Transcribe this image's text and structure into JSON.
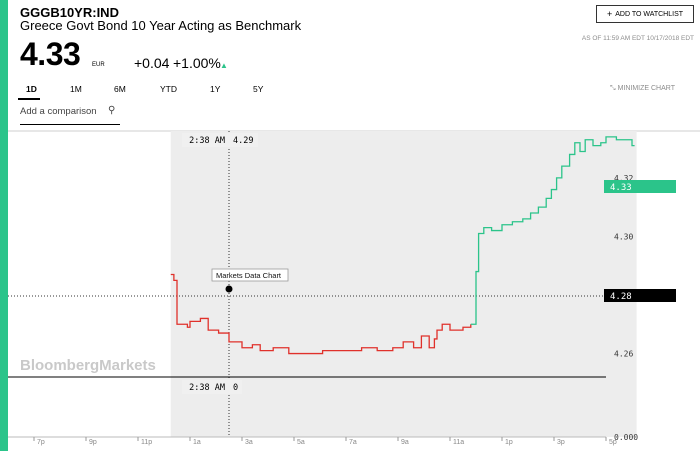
{
  "header": {
    "ticker": "GGGB10YR:IND",
    "name": "Greece Govt Bond 10 Year Acting as Benchmark",
    "watchlist_label": "ADD TO WATCHLIST",
    "as_of": "AS OF 11:59 AM EDT 10/17/2018 EDT",
    "price": "4.33",
    "currency": "EUR",
    "change": "+0.04",
    "change_pct": "+1.00%",
    "accent_color": "#2bc48a"
  },
  "tabs": [
    {
      "label": "1D",
      "active": true
    },
    {
      "label": "1M",
      "active": false
    },
    {
      "label": "6M",
      "active": false
    },
    {
      "label": "YTD",
      "active": false
    },
    {
      "label": "1Y",
      "active": false
    },
    {
      "label": "5Y",
      "active": false
    }
  ],
  "minimize_label": "MINIMIZE CHART",
  "compare_placeholder": "Add a comparison",
  "icons": [
    "plus-icon",
    "up-arrow-icon",
    "minimize-icon",
    "search-icon"
  ],
  "chart_data": {
    "type": "line",
    "watermark": "BloombergMarkets",
    "tooltip_label": "Markets Data Chart",
    "crosshair_time": "2:38 AM",
    "crosshair_value": "4.29",
    "crosshair_volume": "0",
    "last_value_tag": "4.33",
    "cursor_value_tag": "4.28",
    "price_ticks": [
      "4.32",
      "4.30",
      "4.26"
    ],
    "volume_tick": "0.000",
    "time_ticks": [
      "7p",
      "9p",
      "11p",
      "1a",
      "3a",
      "5a",
      "7a",
      "9a",
      "11a",
      "1p",
      "3p",
      "5p"
    ],
    "ylim": [
      4.252,
      4.336
    ],
    "colors": {
      "down": "#e0312b",
      "up": "#2bc48a"
    },
    "series": [
      {
        "color": "down",
        "points": [
          [
            2.63,
            4.287
          ],
          [
            2.67,
            4.287
          ],
          [
            2.69,
            4.285
          ],
          [
            2.75,
            4.27
          ],
          [
            2.95,
            4.269
          ],
          [
            3.0,
            4.271
          ],
          [
            3.2,
            4.272
          ],
          [
            3.35,
            4.268
          ],
          [
            3.55,
            4.267
          ],
          [
            3.75,
            4.264
          ],
          [
            4.0,
            4.262
          ],
          [
            4.2,
            4.263
          ],
          [
            4.35,
            4.261
          ],
          [
            4.6,
            4.262
          ],
          [
            4.9,
            4.26
          ],
          [
            5.2,
            4.26
          ],
          [
            5.55,
            4.261
          ],
          [
            5.9,
            4.261
          ],
          [
            6.3,
            4.262
          ],
          [
            6.6,
            4.261
          ],
          [
            6.9,
            4.262
          ],
          [
            7.1,
            4.264
          ],
          [
            7.3,
            4.262
          ],
          [
            7.45,
            4.266
          ],
          [
            7.6,
            4.262
          ],
          [
            7.7,
            4.265
          ],
          [
            7.75,
            4.268
          ],
          [
            7.85,
            4.27
          ],
          [
            8.0,
            4.268
          ],
          [
            8.25,
            4.269
          ],
          [
            8.4,
            4.27
          ]
        ]
      },
      {
        "color": "up",
        "points": [
          [
            8.4,
            4.27
          ],
          [
            8.5,
            4.288
          ],
          [
            8.55,
            4.301
          ],
          [
            8.65,
            4.303
          ],
          [
            8.8,
            4.302
          ],
          [
            9.0,
            4.304
          ],
          [
            9.2,
            4.305
          ],
          [
            9.4,
            4.306
          ],
          [
            9.55,
            4.308
          ],
          [
            9.7,
            4.31
          ],
          [
            9.85,
            4.313
          ],
          [
            9.95,
            4.316
          ],
          [
            10.05,
            4.32
          ],
          [
            10.15,
            4.324
          ],
          [
            10.3,
            4.328
          ],
          [
            10.4,
            4.332
          ],
          [
            10.5,
            4.329
          ],
          [
            10.6,
            4.333
          ],
          [
            10.75,
            4.331
          ],
          [
            10.9,
            4.332
          ],
          [
            11.0,
            4.334
          ],
          [
            11.2,
            4.333
          ],
          [
            11.35,
            4.333
          ],
          [
            11.5,
            4.331
          ],
          [
            11.55,
            4.331
          ]
        ]
      }
    ]
  }
}
